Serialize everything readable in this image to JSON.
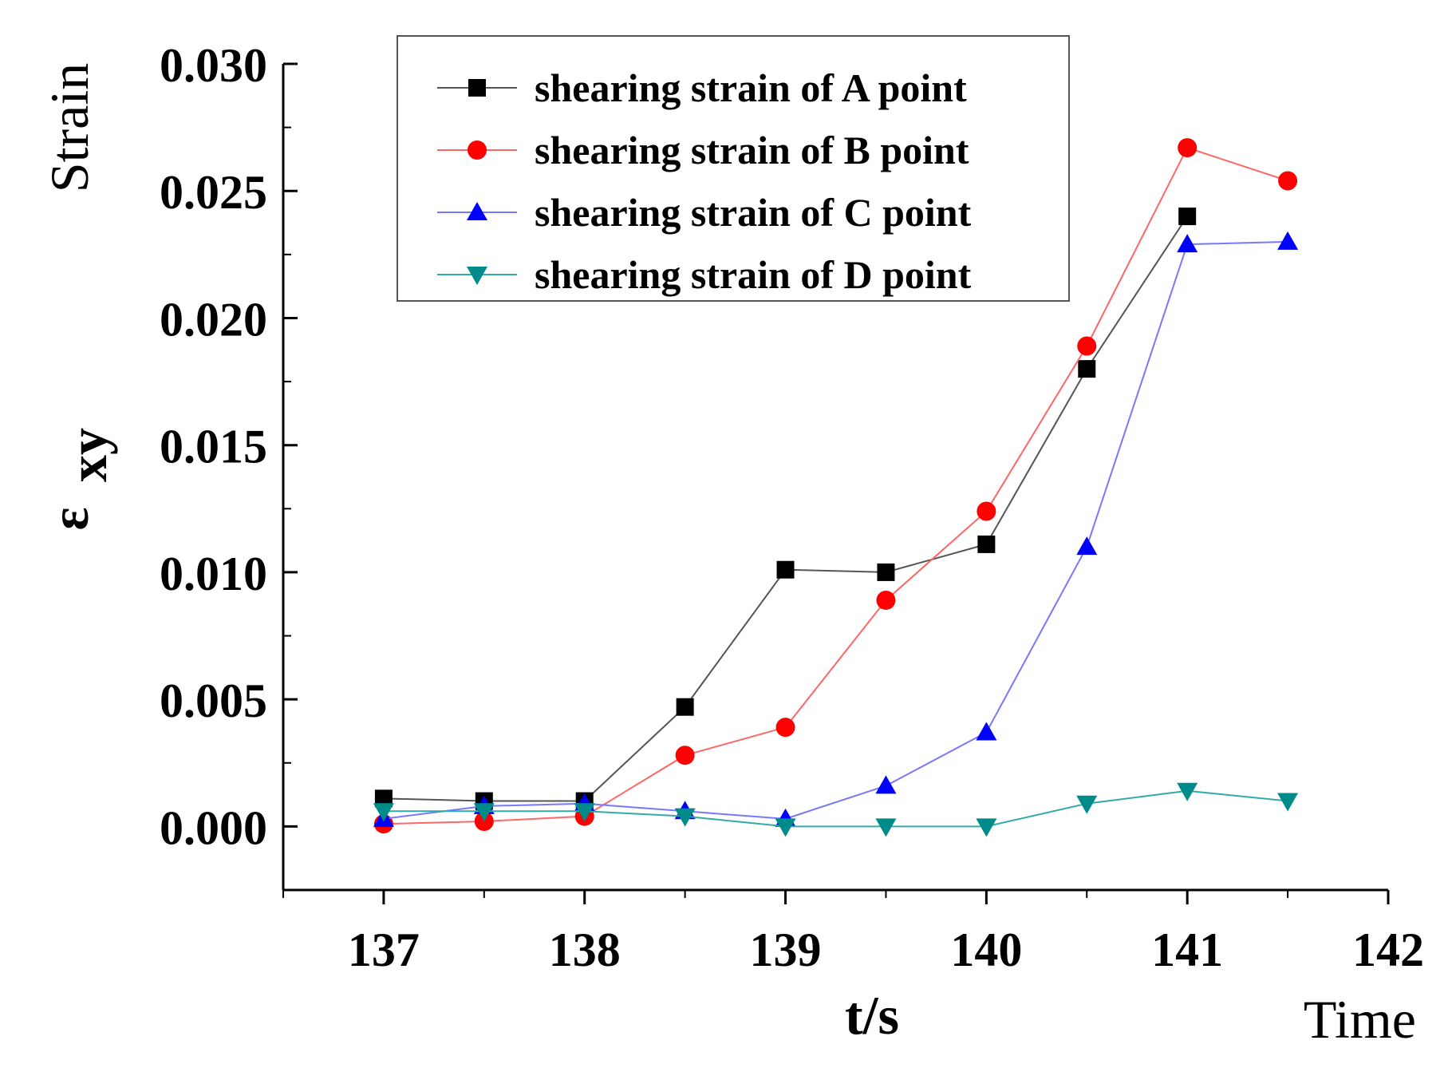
{
  "chart_data": {
    "type": "line",
    "title": "",
    "xlabel": "t/s",
    "xlabel_secondary": "Time",
    "ylabel_symbol": "ε",
    "ylabel_subscript": "xy",
    "ylabel_secondary": "Strain",
    "xlim": [
      136.5,
      142
    ],
    "ylim": [
      -0.0025,
      0.03
    ],
    "x_ticks": [
      "137",
      "138",
      "139",
      "140",
      "141",
      "142"
    ],
    "y_ticks": [
      "0.000",
      "0.005",
      "0.010",
      "0.015",
      "0.020",
      "0.025",
      "0.030"
    ],
    "grid": false,
    "legend_position": "top-center",
    "x": [
      137,
      137.5,
      138,
      138.5,
      139,
      139.5,
      140,
      140.5,
      141,
      141.5
    ],
    "series": [
      {
        "name": "shearing strain of A point",
        "color": "#000000",
        "line_color": "#555555",
        "marker": "square",
        "x": [
          137,
          137.5,
          138,
          138.5,
          139,
          139.5,
          140,
          140.5,
          141
        ],
        "values": [
          0.0011,
          0.001,
          0.001,
          0.0047,
          0.0101,
          0.01,
          0.0111,
          0.018,
          0.024
        ]
      },
      {
        "name": "shearing strain of B point",
        "color": "#ff0000",
        "line_color": "#ff6666",
        "marker": "circle",
        "x": [
          137,
          137.5,
          138,
          138.5,
          139,
          139.5,
          140,
          140.5,
          141,
          141.5
        ],
        "values": [
          0.0001,
          0.0002,
          0.0004,
          0.0028,
          0.0039,
          0.0089,
          0.0124,
          0.0189,
          0.0267,
          0.0254
        ]
      },
      {
        "name": "shearing strain of C point",
        "color": "#0000ff",
        "line_color": "#7777ff",
        "marker": "triangle-up",
        "x": [
          137,
          137.5,
          138,
          138.5,
          139,
          139.5,
          140,
          140.5,
          141,
          141.5
        ],
        "values": [
          0.0003,
          0.0008,
          0.0009,
          0.0006,
          0.0003,
          0.0016,
          0.0037,
          0.011,
          0.0229,
          0.023
        ]
      },
      {
        "name": "shearing strain of D point",
        "color": "#008b8b",
        "line_color": "#33aaaa",
        "marker": "triangle-down",
        "x": [
          137,
          137.5,
          138,
          138.5,
          139,
          139.5,
          140,
          140.5,
          141,
          141.5
        ],
        "values": [
          0.0006,
          0.0006,
          0.0006,
          0.0004,
          0.0,
          0.0,
          0.0,
          0.0009,
          0.0014,
          0.001
        ]
      }
    ]
  }
}
